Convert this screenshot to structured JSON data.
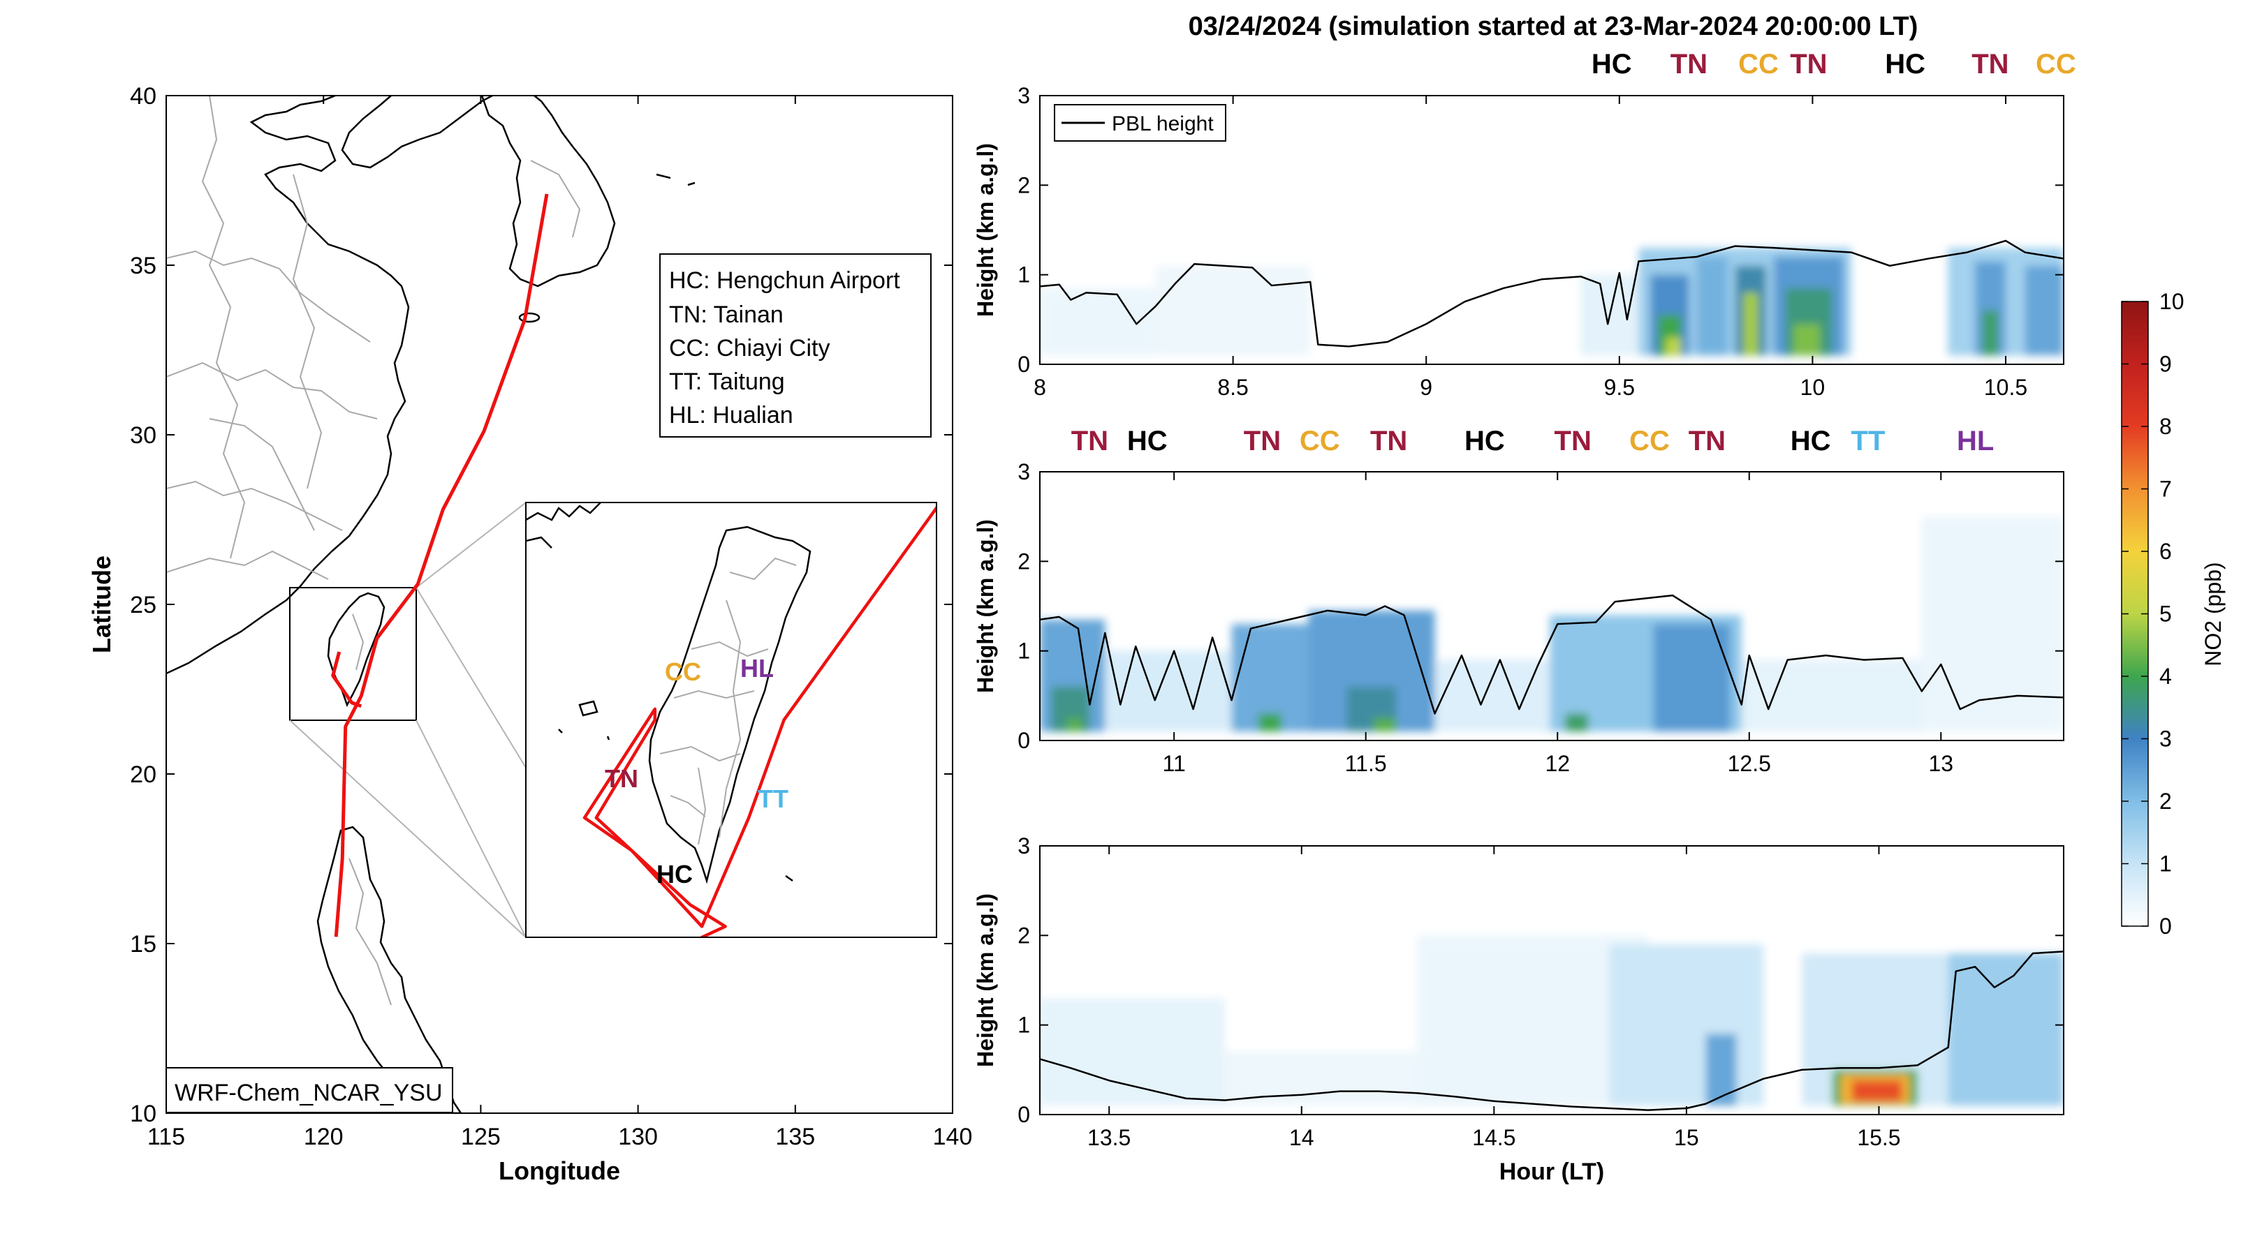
{
  "figure_title": "03/24/2024 (simulation started at 23-Mar-2024 20:00:00 LT)",
  "colors": {
    "track": "#ee1111",
    "HC": "#000000",
    "TN": "#9b1b3c",
    "CC": "#e8a82a",
    "TT": "#4fb6e6",
    "HL": "#7b3199",
    "pbl": "#000000"
  },
  "chart_data": [
    {
      "type": "map",
      "xlabel": "Longitude",
      "ylabel": "Latitude",
      "xlim": [
        115,
        140
      ],
      "ylim": [
        10,
        40
      ],
      "xticks": [
        "115",
        "120",
        "125",
        "130",
        "135",
        "140"
      ],
      "yticks": [
        "10",
        "15",
        "20",
        "25",
        "30",
        "35",
        "40"
      ],
      "model_label": "WRF-Chem_NCAR_YSU",
      "legend_entries": [
        "HC: Hengchun Airport",
        "TN: Tainan",
        "CC: Chiayi City",
        "TT: Taitung",
        "HL: Hualian"
      ],
      "track": [
        [
          127.1,
          37.1
        ],
        [
          126.4,
          33.4
        ],
        [
          125.1,
          30.1
        ],
        [
          123.8,
          27.8
        ],
        [
          123.0,
          25.6
        ],
        [
          121.7,
          24.0
        ],
        [
          121.2,
          22.3
        ],
        [
          120.7,
          21.4
        ],
        [
          120.6,
          17.5
        ],
        [
          120.4,
          15.2
        ]
      ],
      "track_taiwan": [
        [
          120.5,
          23.6
        ],
        [
          120.3,
          22.9
        ],
        [
          120.9,
          22.1
        ],
        [
          121.2,
          22.0
        ]
      ],
      "inset_box": [
        119.5,
        21.5,
        123.0,
        25.5
      ],
      "inset_labels": [
        "CC",
        "HL",
        "TN",
        "TT",
        "HC"
      ]
    },
    {
      "type": "heatmap",
      "ylabel": "Height (km a.g.l)",
      "xlim": [
        8.0,
        10.65
      ],
      "ylim": [
        0,
        3
      ],
      "xticks": [
        "8",
        "8.5",
        "9",
        "9.5",
        "10",
        "10.5"
      ],
      "yticks": [
        "0",
        "1",
        "2",
        "3"
      ],
      "legend": "PBL height",
      "top_labels": [
        "HC",
        "TN",
        "CC",
        "TN",
        "HC",
        "TN",
        "CC"
      ],
      "top_label_x": [
        9.48,
        9.68,
        9.86,
        9.99,
        10.24,
        10.46,
        10.63
      ],
      "pbl": [
        [
          8.0,
          0.87
        ],
        [
          8.05,
          0.89
        ],
        [
          8.08,
          0.72
        ],
        [
          8.12,
          0.8
        ],
        [
          8.2,
          0.78
        ],
        [
          8.25,
          0.45
        ],
        [
          8.3,
          0.65
        ],
        [
          8.35,
          0.9
        ],
        [
          8.4,
          1.12
        ],
        [
          8.55,
          1.08
        ],
        [
          8.6,
          0.88
        ],
        [
          8.7,
          0.92
        ],
        [
          8.72,
          0.22
        ],
        [
          8.8,
          0.2
        ],
        [
          8.9,
          0.25
        ],
        [
          9.0,
          0.45
        ],
        [
          9.1,
          0.7
        ],
        [
          9.2,
          0.85
        ],
        [
          9.3,
          0.95
        ],
        [
          9.4,
          0.98
        ],
        [
          9.45,
          0.9
        ],
        [
          9.47,
          0.45
        ],
        [
          9.5,
          1.02
        ],
        [
          9.52,
          0.5
        ],
        [
          9.55,
          1.15
        ],
        [
          9.7,
          1.2
        ],
        [
          9.8,
          1.32
        ],
        [
          9.9,
          1.3
        ],
        [
          10.1,
          1.25
        ],
        [
          10.2,
          1.1
        ],
        [
          10.3,
          1.18
        ],
        [
          10.4,
          1.25
        ],
        [
          10.5,
          1.38
        ],
        [
          10.55,
          1.25
        ],
        [
          10.65,
          1.18
        ]
      ],
      "no2_patches": [
        {
          "x0": 8.0,
          "x1": 8.3,
          "y0": 0.1,
          "y1": 0.85,
          "v": 0.35
        },
        {
          "x0": 8.3,
          "x1": 8.7,
          "y0": 0.1,
          "y1": 1.1,
          "v": 0.3
        },
        {
          "x0": 9.4,
          "x1": 9.55,
          "y0": 0.1,
          "y1": 1.0,
          "v": 0.5
        },
        {
          "x0": 9.55,
          "x1": 10.1,
          "y0": 0.1,
          "y1": 1.3,
          "v": 1.6
        },
        {
          "x0": 9.58,
          "x1": 9.68,
          "y0": 0.1,
          "y1": 1.0,
          "v": 2.8
        },
        {
          "x0": 9.6,
          "x1": 9.66,
          "y0": 0.1,
          "y1": 0.55,
          "v": 4.0
        },
        {
          "x0": 9.62,
          "x1": 9.66,
          "y0": 0.1,
          "y1": 0.3,
          "v": 5.0
        },
        {
          "x0": 9.7,
          "x1": 9.78,
          "y0": 0.1,
          "y1": 1.2,
          "v": 2.2
        },
        {
          "x0": 9.8,
          "x1": 9.88,
          "y0": 0.1,
          "y1": 1.1,
          "v": 3.2
        },
        {
          "x0": 9.82,
          "x1": 9.86,
          "y0": 0.1,
          "y1": 0.8,
          "v": 4.8
        },
        {
          "x0": 9.9,
          "x1": 10.08,
          "y0": 0.1,
          "y1": 1.2,
          "v": 2.6
        },
        {
          "x0": 9.93,
          "x1": 10.05,
          "y0": 0.1,
          "y1": 0.85,
          "v": 3.6
        },
        {
          "x0": 9.95,
          "x1": 10.02,
          "y0": 0.1,
          "y1": 0.45,
          "v": 4.5
        },
        {
          "x0": 10.35,
          "x1": 10.65,
          "y0": 0.1,
          "y1": 1.3,
          "v": 1.5
        },
        {
          "x0": 10.42,
          "x1": 10.5,
          "y0": 0.1,
          "y1": 1.15,
          "v": 2.5
        },
        {
          "x0": 10.44,
          "x1": 10.48,
          "y0": 0.1,
          "y1": 0.6,
          "v": 3.8
        },
        {
          "x0": 10.55,
          "x1": 10.65,
          "y0": 0.1,
          "y1": 1.1,
          "v": 2.4
        }
      ]
    },
    {
      "type": "heatmap",
      "ylabel": "Height (km a.g.l)",
      "xlim": [
        10.65,
        13.32
      ],
      "ylim": [
        0,
        3
      ],
      "xticks": [
        "11",
        "11.5",
        "12",
        "12.5",
        "13"
      ],
      "yticks": [
        "0",
        "1",
        "2",
        "3"
      ],
      "top_labels": [
        "TN",
        "HC",
        "TN",
        "CC",
        "TN",
        "HC",
        "TN",
        "CC",
        "TN",
        "HC",
        "TT",
        "HL"
      ],
      "top_label_x": [
        10.78,
        10.93,
        11.23,
        11.38,
        11.56,
        11.81,
        12.04,
        12.24,
        12.39,
        12.66,
        12.81,
        13.09
      ],
      "pbl": [
        [
          10.65,
          1.35
        ],
        [
          10.7,
          1.38
        ],
        [
          10.75,
          1.25
        ],
        [
          10.78,
          0.4
        ],
        [
          10.82,
          1.2
        ],
        [
          10.86,
          0.4
        ],
        [
          10.9,
          1.05
        ],
        [
          10.95,
          0.45
        ],
        [
          11.0,
          1.0
        ],
        [
          11.05,
          0.35
        ],
        [
          11.1,
          1.15
        ],
        [
          11.15,
          0.45
        ],
        [
          11.2,
          1.25
        ],
        [
          11.3,
          1.35
        ],
        [
          11.4,
          1.45
        ],
        [
          11.5,
          1.4
        ],
        [
          11.55,
          1.5
        ],
        [
          11.6,
          1.4
        ],
        [
          11.68,
          0.3
        ],
        [
          11.75,
          0.95
        ],
        [
          11.8,
          0.4
        ],
        [
          11.85,
          0.9
        ],
        [
          11.9,
          0.35
        ],
        [
          11.95,
          0.85
        ],
        [
          12.0,
          1.3
        ],
        [
          12.1,
          1.32
        ],
        [
          12.15,
          1.55
        ],
        [
          12.3,
          1.62
        ],
        [
          12.4,
          1.35
        ],
        [
          12.48,
          0.4
        ],
        [
          12.5,
          0.95
        ],
        [
          12.55,
          0.35
        ],
        [
          12.6,
          0.9
        ],
        [
          12.7,
          0.95
        ],
        [
          12.8,
          0.9
        ],
        [
          12.9,
          0.92
        ],
        [
          12.95,
          0.55
        ],
        [
          13.0,
          0.85
        ],
        [
          13.05,
          0.35
        ],
        [
          13.1,
          0.45
        ],
        [
          13.2,
          0.5
        ],
        [
          13.32,
          0.48
        ]
      ],
      "no2_patches": [
        {
          "x0": 10.65,
          "x1": 10.82,
          "y0": 0.1,
          "y1": 1.35,
          "v": 2.4
        },
        {
          "x0": 10.68,
          "x1": 10.78,
          "y0": 0.1,
          "y1": 0.6,
          "v": 3.5
        },
        {
          "x0": 10.72,
          "x1": 10.76,
          "y0": 0.1,
          "y1": 0.25,
          "v": 4.2
        },
        {
          "x0": 10.82,
          "x1": 11.15,
          "y0": 0.1,
          "y1": 1.0,
          "v": 0.7
        },
        {
          "x0": 11.15,
          "x1": 11.35,
          "y0": 0.1,
          "y1": 1.3,
          "v": 2.3
        },
        {
          "x0": 11.22,
          "x1": 11.28,
          "y0": 0.1,
          "y1": 0.3,
          "v": 4.0
        },
        {
          "x0": 11.35,
          "x1": 11.68,
          "y0": 0.1,
          "y1": 1.45,
          "v": 2.5
        },
        {
          "x0": 11.45,
          "x1": 11.58,
          "y0": 0.1,
          "y1": 0.6,
          "v": 3.3
        },
        {
          "x0": 11.52,
          "x1": 11.58,
          "y0": 0.1,
          "y1": 0.25,
          "v": 4.2
        },
        {
          "x0": 11.68,
          "x1": 11.98,
          "y0": 0.1,
          "y1": 0.9,
          "v": 0.6
        },
        {
          "x0": 11.98,
          "x1": 12.48,
          "y0": 0.1,
          "y1": 1.4,
          "v": 1.8
        },
        {
          "x0": 12.02,
          "x1": 12.08,
          "y0": 0.1,
          "y1": 0.3,
          "v": 3.8
        },
        {
          "x0": 12.25,
          "x1": 12.45,
          "y0": 0.1,
          "y1": 1.3,
          "v": 2.6
        },
        {
          "x0": 12.48,
          "x1": 13.0,
          "y0": 0.1,
          "y1": 0.9,
          "v": 0.45
        },
        {
          "x0": 12.95,
          "x1": 13.32,
          "y0": 0.1,
          "y1": 2.5,
          "v": 0.35
        }
      ]
    },
    {
      "type": "heatmap",
      "xlabel": "Hour (LT)",
      "ylabel": "Height (km a.g.l)",
      "xlim": [
        13.32,
        15.98
      ],
      "ylim": [
        0,
        3
      ],
      "xticks": [
        "13.5",
        "14",
        "14.5",
        "15",
        "15.5"
      ],
      "yticks": [
        "0",
        "1",
        "2",
        "3"
      ],
      "pbl": [
        [
          13.32,
          0.62
        ],
        [
          13.4,
          0.52
        ],
        [
          13.5,
          0.38
        ],
        [
          13.6,
          0.28
        ],
        [
          13.7,
          0.18
        ],
        [
          13.8,
          0.16
        ],
        [
          13.9,
          0.2
        ],
        [
          14.0,
          0.22
        ],
        [
          14.1,
          0.26
        ],
        [
          14.2,
          0.26
        ],
        [
          14.3,
          0.24
        ],
        [
          14.4,
          0.2
        ],
        [
          14.5,
          0.15
        ],
        [
          14.6,
          0.12
        ],
        [
          14.7,
          0.09
        ],
        [
          14.8,
          0.07
        ],
        [
          14.9,
          0.05
        ],
        [
          15.0,
          0.07
        ],
        [
          15.05,
          0.12
        ],
        [
          15.1,
          0.22
        ],
        [
          15.2,
          0.4
        ],
        [
          15.3,
          0.5
        ],
        [
          15.4,
          0.52
        ],
        [
          15.5,
          0.52
        ],
        [
          15.6,
          0.55
        ],
        [
          15.68,
          0.75
        ],
        [
          15.7,
          1.6
        ],
        [
          15.75,
          1.65
        ],
        [
          15.8,
          1.42
        ],
        [
          15.85,
          1.55
        ],
        [
          15.9,
          1.8
        ],
        [
          15.98,
          1.82
        ]
      ],
      "no2_patches": [
        {
          "x0": 13.32,
          "x1": 13.8,
          "y0": 0.1,
          "y1": 1.3,
          "v": 0.45
        },
        {
          "x0": 13.8,
          "x1": 14.3,
          "y0": 0.1,
          "y1": 0.7,
          "v": 0.3
        },
        {
          "x0": 14.3,
          "x1": 14.9,
          "y0": 0.1,
          "y1": 2.0,
          "v": 0.35
        },
        {
          "x0": 14.8,
          "x1": 15.2,
          "y0": 0.1,
          "y1": 1.9,
          "v": 0.9
        },
        {
          "x0": 15.05,
          "x1": 15.13,
          "y0": 0.1,
          "y1": 0.9,
          "v": 2.4
        },
        {
          "x0": 15.3,
          "x1": 15.68,
          "y0": 0.1,
          "y1": 1.8,
          "v": 0.8
        },
        {
          "x0": 15.38,
          "x1": 15.6,
          "y0": 0.1,
          "y1": 0.5,
          "v": 4.0
        },
        {
          "x0": 15.4,
          "x1": 15.58,
          "y0": 0.12,
          "y1": 0.45,
          "v": 6.5
        },
        {
          "x0": 15.43,
          "x1": 15.56,
          "y0": 0.15,
          "y1": 0.38,
          "v": 7.8
        },
        {
          "x0": 15.68,
          "x1": 15.98,
          "y0": 0.1,
          "y1": 1.8,
          "v": 1.6
        }
      ]
    },
    {
      "type": "colorbar",
      "label": "NO2 (ppb)",
      "range": [
        0,
        10
      ],
      "ticks": [
        "0",
        "1",
        "2",
        "3",
        "4",
        "5",
        "6",
        "7",
        "8",
        "9",
        "10"
      ]
    }
  ]
}
